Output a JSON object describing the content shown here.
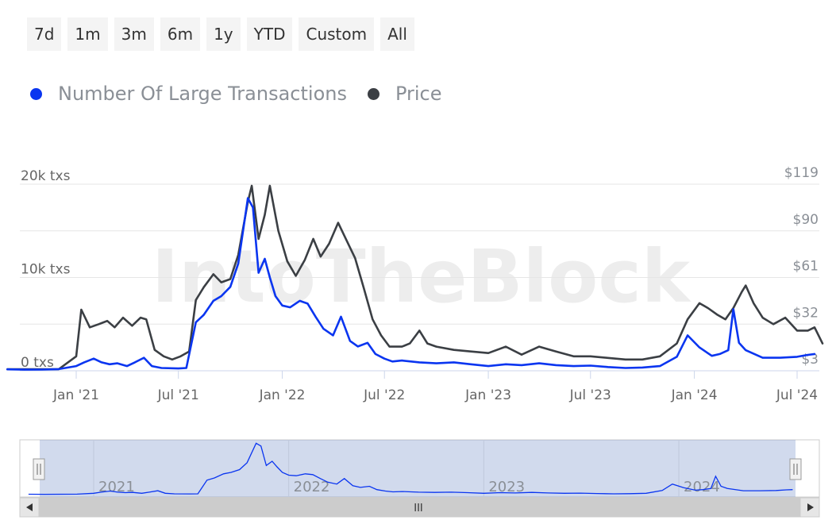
{
  "range_buttons": [
    "7d",
    "1m",
    "3m",
    "6m",
    "1y",
    "YTD",
    "Custom",
    "All"
  ],
  "legend": [
    {
      "label": "Number Of Large Transactions",
      "color": "#0a35f0"
    },
    {
      "label": "Price",
      "color": "#3b3f44"
    }
  ],
  "watermark": "IntoTheBlock",
  "navigator": {
    "years": [
      "2021",
      "2022",
      "2023",
      "2024"
    ],
    "scrollbar_grip": "III"
  },
  "chart_data": {
    "type": "line",
    "x_tick_labels": [
      "Jan '21",
      "Jul '21",
      "Jan '22",
      "Jul '22",
      "Jan '23",
      "Jul '23",
      "Jan '24",
      "Jul '24"
    ],
    "y_left": {
      "tick_labels": [
        "0 txs",
        "10k txs",
        "20k txs"
      ],
      "range": [
        0,
        20000
      ],
      "unit": "txs"
    },
    "y_right": {
      "tick_labels": [
        "$3",
        "$32",
        "$61",
        "$90",
        "$119"
      ],
      "range": [
        3,
        119
      ],
      "unit": "USD"
    },
    "grid": true,
    "legend_position": "top-left",
    "series": [
      {
        "name": "Number Of Large Transactions",
        "axis": "left",
        "color": "#0a35f0",
        "points": [
          [
            "2020-09-01",
            150
          ],
          [
            "2020-10-01",
            120
          ],
          [
            "2020-11-01",
            130
          ],
          [
            "2020-12-01",
            180
          ],
          [
            "2021-01-01",
            500
          ],
          [
            "2021-01-15",
            900
          ],
          [
            "2021-02-01",
            1300
          ],
          [
            "2021-02-15",
            900
          ],
          [
            "2021-03-01",
            700
          ],
          [
            "2021-03-15",
            800
          ],
          [
            "2021-04-01",
            500
          ],
          [
            "2021-04-15",
            900
          ],
          [
            "2021-05-01",
            1400
          ],
          [
            "2021-05-15",
            500
          ],
          [
            "2021-06-01",
            300
          ],
          [
            "2021-07-01",
            250
          ],
          [
            "2021-07-15",
            300
          ],
          [
            "2021-08-01",
            5200
          ],
          [
            "2021-08-15",
            6000
          ],
          [
            "2021-09-01",
            7500
          ],
          [
            "2021-09-15",
            8000
          ],
          [
            "2021-10-01",
            9000
          ],
          [
            "2021-10-15",
            11500
          ],
          [
            "2021-11-01",
            18500
          ],
          [
            "2021-11-10",
            17500
          ],
          [
            "2021-11-20",
            10500
          ],
          [
            "2021-12-01",
            12000
          ],
          [
            "2021-12-10",
            10000
          ],
          [
            "2021-12-20",
            8000
          ],
          [
            "2022-01-01",
            7000
          ],
          [
            "2022-01-15",
            6800
          ],
          [
            "2022-02-01",
            7500
          ],
          [
            "2022-02-15",
            7200
          ],
          [
            "2022-03-01",
            5800
          ],
          [
            "2022-03-15",
            4500
          ],
          [
            "2022-04-01",
            3800
          ],
          [
            "2022-04-15",
            5800
          ],
          [
            "2022-05-01",
            3200
          ],
          [
            "2022-05-15",
            2600
          ],
          [
            "2022-06-01",
            3000
          ],
          [
            "2022-06-15",
            1800
          ],
          [
            "2022-07-01",
            1300
          ],
          [
            "2022-07-15",
            1000
          ],
          [
            "2022-08-01",
            1100
          ],
          [
            "2022-09-01",
            900
          ],
          [
            "2022-10-01",
            800
          ],
          [
            "2022-11-01",
            900
          ],
          [
            "2022-12-01",
            700
          ],
          [
            "2023-01-01",
            500
          ],
          [
            "2023-02-01",
            700
          ],
          [
            "2023-03-01",
            600
          ],
          [
            "2023-04-01",
            800
          ],
          [
            "2023-05-01",
            600
          ],
          [
            "2023-06-01",
            500
          ],
          [
            "2023-07-01",
            550
          ],
          [
            "2023-08-01",
            400
          ],
          [
            "2023-09-01",
            300
          ],
          [
            "2023-10-01",
            350
          ],
          [
            "2023-11-01",
            500
          ],
          [
            "2023-12-01",
            1500
          ],
          [
            "2023-12-20",
            3800
          ],
          [
            "2024-01-10",
            2500
          ],
          [
            "2024-02-01",
            1600
          ],
          [
            "2024-02-15",
            1800
          ],
          [
            "2024-03-01",
            2200
          ],
          [
            "2024-03-10",
            6600
          ],
          [
            "2024-03-20",
            3000
          ],
          [
            "2024-04-01",
            2200
          ],
          [
            "2024-05-01",
            1400
          ],
          [
            "2024-06-01",
            1400
          ],
          [
            "2024-07-01",
            1500
          ],
          [
            "2024-07-20",
            1700
          ],
          [
            "2024-08-01",
            1800
          ]
        ]
      },
      {
        "name": "Price",
        "axis": "right",
        "color": "#3b3f44",
        "points": [
          [
            "2020-09-01",
            4
          ],
          [
            "2020-10-01",
            4
          ],
          [
            "2020-11-01",
            4
          ],
          [
            "2020-12-01",
            4
          ],
          [
            "2021-01-01",
            12
          ],
          [
            "2021-01-10",
            41
          ],
          [
            "2021-01-25",
            30
          ],
          [
            "2021-02-10",
            32
          ],
          [
            "2021-02-25",
            34
          ],
          [
            "2021-03-10",
            30
          ],
          [
            "2021-03-25",
            36
          ],
          [
            "2021-04-10",
            31
          ],
          [
            "2021-04-25",
            36
          ],
          [
            "2021-05-05",
            35
          ],
          [
            "2021-05-20",
            16
          ],
          [
            "2021-06-05",
            12
          ],
          [
            "2021-06-20",
            10
          ],
          [
            "2021-07-05",
            12
          ],
          [
            "2021-07-20",
            15
          ],
          [
            "2021-08-01",
            47
          ],
          [
            "2021-08-15",
            55
          ],
          [
            "2021-09-01",
            63
          ],
          [
            "2021-09-15",
            58
          ],
          [
            "2021-10-01",
            60
          ],
          [
            "2021-10-15",
            75
          ],
          [
            "2021-11-01",
            108
          ],
          [
            "2021-11-08",
            118
          ],
          [
            "2021-11-20",
            85
          ],
          [
            "2021-12-01",
            100
          ],
          [
            "2021-12-10",
            118
          ],
          [
            "2021-12-25",
            90
          ],
          [
            "2022-01-10",
            71
          ],
          [
            "2022-01-25",
            62
          ],
          [
            "2022-02-10",
            72
          ],
          [
            "2022-02-25",
            85
          ],
          [
            "2022-03-10",
            74
          ],
          [
            "2022-03-25",
            82
          ],
          [
            "2022-04-10",
            95
          ],
          [
            "2022-04-25",
            84
          ],
          [
            "2022-05-10",
            73
          ],
          [
            "2022-05-25",
            55
          ],
          [
            "2022-06-10",
            35
          ],
          [
            "2022-06-25",
            25
          ],
          [
            "2022-07-10",
            18
          ],
          [
            "2022-08-01",
            18
          ],
          [
            "2022-08-15",
            20
          ],
          [
            "2022-09-01",
            28
          ],
          [
            "2022-09-15",
            20
          ],
          [
            "2022-10-01",
            18
          ],
          [
            "2022-11-01",
            16
          ],
          [
            "2022-12-01",
            15
          ],
          [
            "2023-01-01",
            14
          ],
          [
            "2023-02-01",
            18
          ],
          [
            "2023-03-01",
            13
          ],
          [
            "2023-04-01",
            18
          ],
          [
            "2023-05-01",
            15
          ],
          [
            "2023-06-01",
            12
          ],
          [
            "2023-07-01",
            12
          ],
          [
            "2023-08-01",
            11
          ],
          [
            "2023-09-01",
            10
          ],
          [
            "2023-10-01",
            10
          ],
          [
            "2023-11-01",
            12
          ],
          [
            "2023-12-01",
            20
          ],
          [
            "2023-12-20",
            35
          ],
          [
            "2024-01-10",
            45
          ],
          [
            "2024-01-25",
            42
          ],
          [
            "2024-02-10",
            38
          ],
          [
            "2024-02-25",
            35
          ],
          [
            "2024-03-10",
            42
          ],
          [
            "2024-03-25",
            52
          ],
          [
            "2024-04-01",
            56
          ],
          [
            "2024-04-15",
            45
          ],
          [
            "2024-05-01",
            36
          ],
          [
            "2024-05-20",
            32
          ],
          [
            "2024-06-10",
            36
          ],
          [
            "2024-07-01",
            28
          ],
          [
            "2024-07-20",
            28
          ],
          [
            "2024-08-01",
            30
          ],
          [
            "2024-08-15",
            20
          ]
        ]
      }
    ]
  }
}
